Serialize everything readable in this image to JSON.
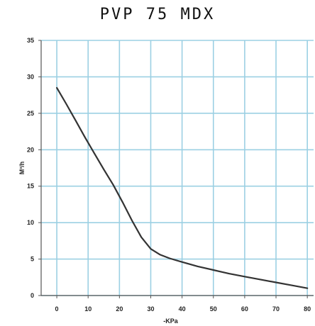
{
  "chart_data": {
    "type": "line",
    "title": "PVP 75 MDX",
    "xlabel": "-KPa",
    "ylabel": "M³/h",
    "xlim": [
      -5,
      82
    ],
    "ylim": [
      0,
      35
    ],
    "x_ticks": [
      "0",
      "10",
      "20",
      "30",
      "40",
      "50",
      "60",
      "70",
      "80"
    ],
    "y_ticks": [
      "0",
      "5",
      "10",
      "15",
      "20",
      "25",
      "30",
      "35"
    ],
    "grid": true,
    "series": [
      {
        "x": [
          0,
          3,
          6,
          9,
          12,
          15,
          18,
          21,
          24,
          27,
          30,
          33,
          36,
          40,
          45,
          50,
          55,
          60,
          65,
          70,
          75,
          80
        ],
        "y": [
          28.5,
          26.3,
          24.0,
          21.7,
          19.5,
          17.3,
          15.2,
          12.8,
          10.3,
          8.0,
          6.4,
          5.6,
          5.1,
          4.6,
          4.0,
          3.5,
          3.0,
          2.6,
          2.2,
          1.8,
          1.4,
          1.0
        ]
      }
    ],
    "colors": {
      "grid": "#9cd0e3",
      "line": "#333333",
      "axis": "#555555"
    }
  }
}
